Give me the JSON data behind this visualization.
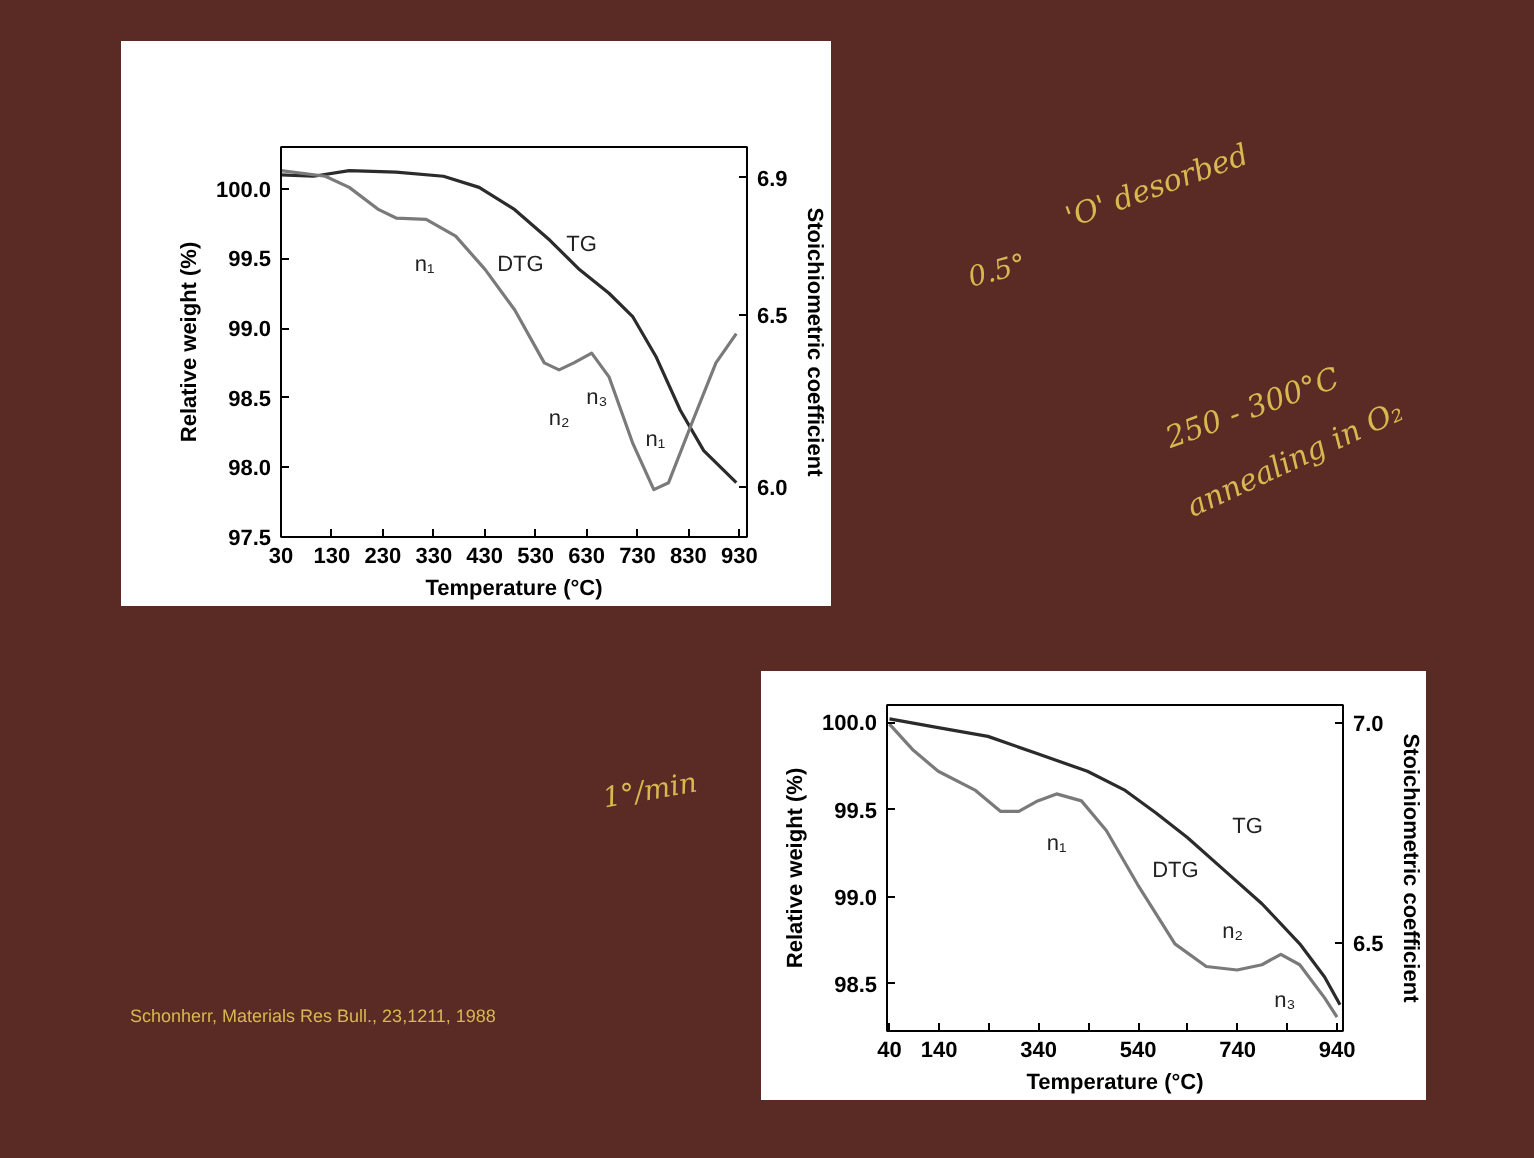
{
  "chart_data": [
    {
      "type": "line",
      "xlabel": "Temperature (°C)",
      "ylabel": "Relative weight (%)",
      "y2label": "Stoichiometric coefficient",
      "xlim": [
        30,
        945
      ],
      "ylim": [
        97.5,
        100.3
      ],
      "y2lim": [
        5.855,
        6.99
      ],
      "xticks": [
        30,
        130,
        230,
        330,
        430,
        530,
        630,
        730,
        830,
        930
      ],
      "yticks": [
        {
          "value": 97.5,
          "label": "97.5"
        },
        {
          "value": 98.0,
          "label": "98.0"
        },
        {
          "value": 98.5,
          "label": "98.5"
        },
        {
          "value": 99.0,
          "label": "99.0"
        },
        {
          "value": 99.5,
          "label": "99.5"
        },
        {
          "value": 100.0,
          "label": "100.0"
        }
      ],
      "y2ticks": [
        {
          "value": 6.0,
          "label": "6.0"
        },
        {
          "value": 6.5,
          "label": "6.5"
        },
        {
          "value": 6.9,
          "label": "6.9"
        }
      ],
      "grid": false,
      "series": [
        {
          "color": "#2b2b2b",
          "x": [
            30,
            94,
            164,
            256,
            349,
            419,
            489,
            558,
            616,
            674,
            721,
            767,
            814,
            860,
            924
          ],
          "values": [
            100.1,
            100.09,
            100.13,
            100.12,
            100.09,
            100.01,
            99.85,
            99.63,
            99.42,
            99.25,
            99.08,
            98.79,
            98.41,
            98.12,
            97.89
          ]
        },
        {
          "color": "#7a7a7a",
          "x": [
            30,
            117,
            164,
            222,
            256,
            315,
            373,
            431,
            489,
            547,
            576,
            605,
            640,
            674,
            721,
            762,
            791,
            837,
            884,
            924
          ],
          "values": [
            100.13,
            100.09,
            100.01,
            99.85,
            99.79,
            99.78,
            99.66,
            99.42,
            99.13,
            98.75,
            98.7,
            98.75,
            98.82,
            98.65,
            98.17,
            97.84,
            97.89,
            98.32,
            98.75,
            98.96
          ]
        }
      ],
      "annotations": [
        "TG",
        "DTG",
        "n₁",
        "n₂",
        "n₃",
        "n₁",
        "0.5°",
        "'O' desorbed",
        "250 - 300°C",
        "annealing in O₂"
      ]
    },
    {
      "type": "line",
      "xlabel": "Temperature (°C)",
      "ylabel": "Relative weight (%)",
      "y2label": "Stoichiometric coefficient",
      "xlim": [
        35,
        952
      ],
      "ylim": [
        98.23,
        100.1
      ],
      "y2lim": [
        6.3,
        7.04
      ],
      "xticks": [
        40,
        140,
        {
          "value": 240,
          "label": null
        },
        340,
        {
          "value": 440,
          "label": null
        },
        540,
        {
          "value": 640,
          "label": null
        },
        740,
        {
          "value": 840,
          "label": null
        },
        940
      ],
      "yticks": [
        98.5,
        {
          "value": 99.0,
          "label": "99.0"
        },
        99.5,
        {
          "value": 100.0,
          "label": "100.0"
        }
      ],
      "y2ticks": [
        {
          "value": 6.5,
          "label": "6.5"
        },
        {
          "value": 7.0,
          "label": "7.0"
        }
      ],
      "grid": false,
      "series": [
        {
          "color": "#2b2b2b",
          "x": [
            40,
            138,
            238,
            338,
            438,
            514,
            576,
            639,
            714,
            789,
            865,
            915,
            946
          ],
          "values": [
            100.02,
            99.97,
            99.92,
            99.82,
            99.72,
            99.61,
            99.48,
            99.34,
            99.15,
            98.96,
            98.73,
            98.54,
            98.38
          ]
        },
        {
          "color": "#7a7a7a",
          "x": [
            40,
            88,
            138,
            213,
            263,
            300,
            338,
            376,
            426,
            476,
            539,
            614,
            677,
            739,
            789,
            827,
            865,
            915,
            940
          ],
          "values": [
            99.99,
            99.84,
            99.72,
            99.61,
            99.49,
            99.49,
            99.55,
            99.59,
            99.55,
            99.38,
            99.07,
            98.73,
            98.6,
            98.58,
            98.61,
            98.67,
            98.61,
            98.42,
            98.31
          ]
        }
      ],
      "annotations": [
        "TG",
        "DTG",
        "n₁",
        "n₂",
        "n₃",
        "1°/min",
        "Schonherr, Materials Res Bull., 23,1211, 1988"
      ]
    }
  ]
}
